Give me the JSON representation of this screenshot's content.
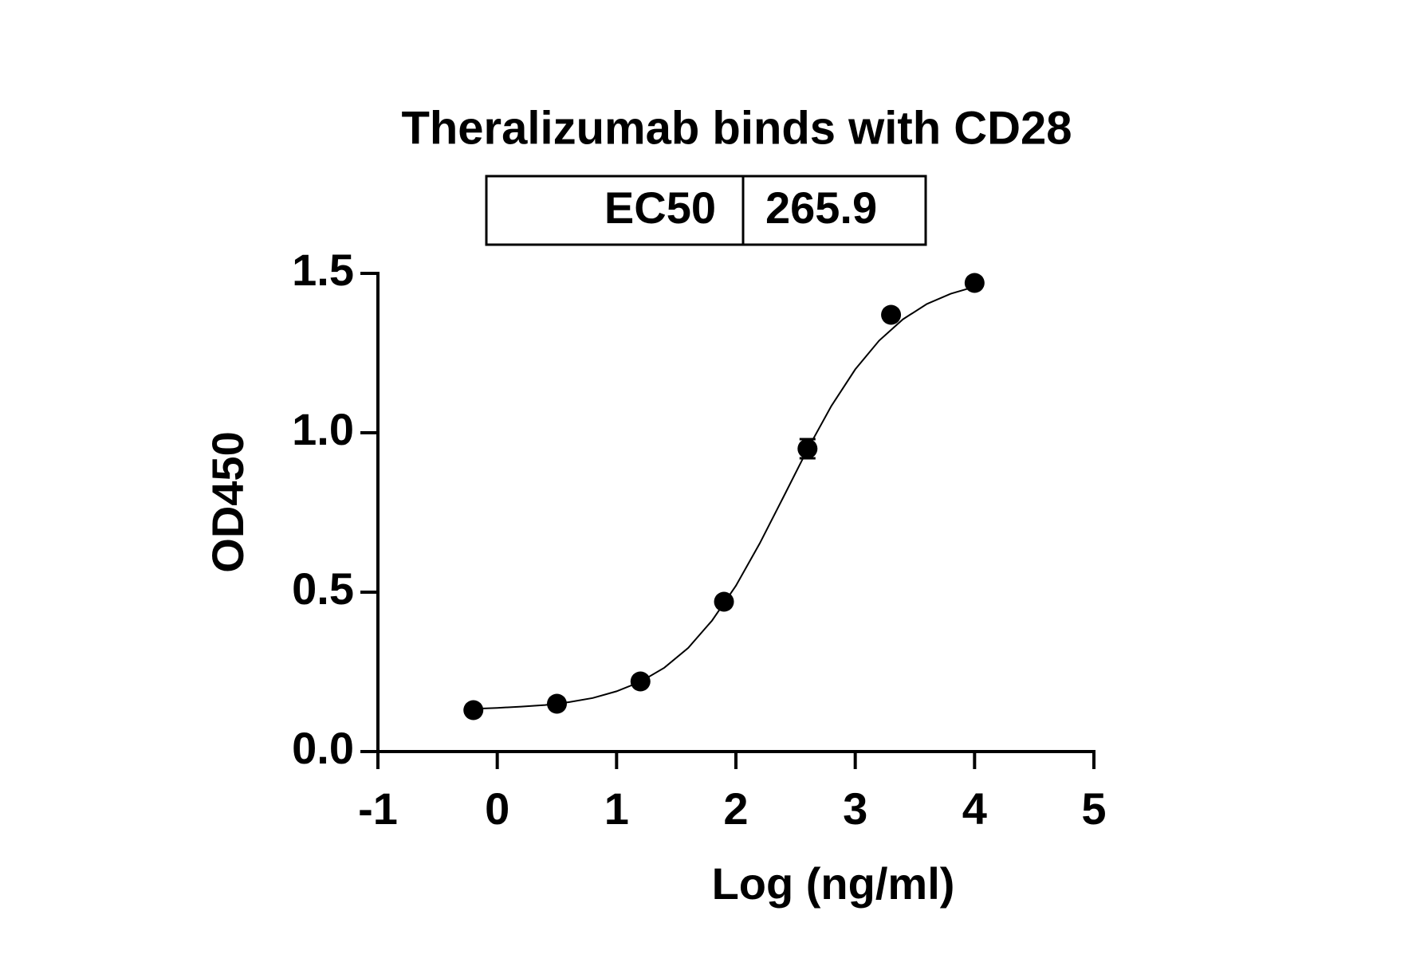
{
  "chart_data": {
    "type": "scatter",
    "title": "Theralizumab binds with CD28",
    "table": {
      "label": "EC50",
      "value": 265.9
    },
    "x_label": "Log (ng/ml)",
    "y_label": "OD450",
    "x": [
      -0.2,
      0.5,
      1.2,
      1.9,
      2.6,
      3.3,
      4.0
    ],
    "values": [
      0.13,
      0.15,
      0.22,
      0.47,
      0.95,
      1.37,
      1.47
    ],
    "errors": [
      null,
      null,
      null,
      null,
      0.03,
      null,
      null
    ],
    "color": "#000000",
    "curve": {
      "x": [
        -0.2,
        0.0,
        0.2,
        0.4,
        0.6,
        0.8,
        1.0,
        1.2,
        1.4,
        1.6,
        1.8,
        2.0,
        2.2,
        2.4,
        2.6,
        2.8,
        3.0,
        3.2,
        3.4,
        3.6,
        3.8,
        4.0
      ],
      "values": [
        0.134,
        0.137,
        0.141,
        0.146,
        0.155,
        0.168,
        0.189,
        0.219,
        0.263,
        0.325,
        0.411,
        0.52,
        0.653,
        0.8,
        0.948,
        1.084,
        1.199,
        1.289,
        1.356,
        1.404,
        1.436,
        1.458
      ]
    },
    "xlim": [
      -1,
      5
    ],
    "xticks": [
      -1,
      0,
      1,
      2,
      3,
      4,
      5
    ],
    "ylim": [
      0,
      1.5
    ],
    "yticks": [
      {
        "value": 0,
        "label": "0.0"
      },
      0.5,
      {
        "value": 1,
        "label": "1.0"
      },
      1.5
    ]
  }
}
